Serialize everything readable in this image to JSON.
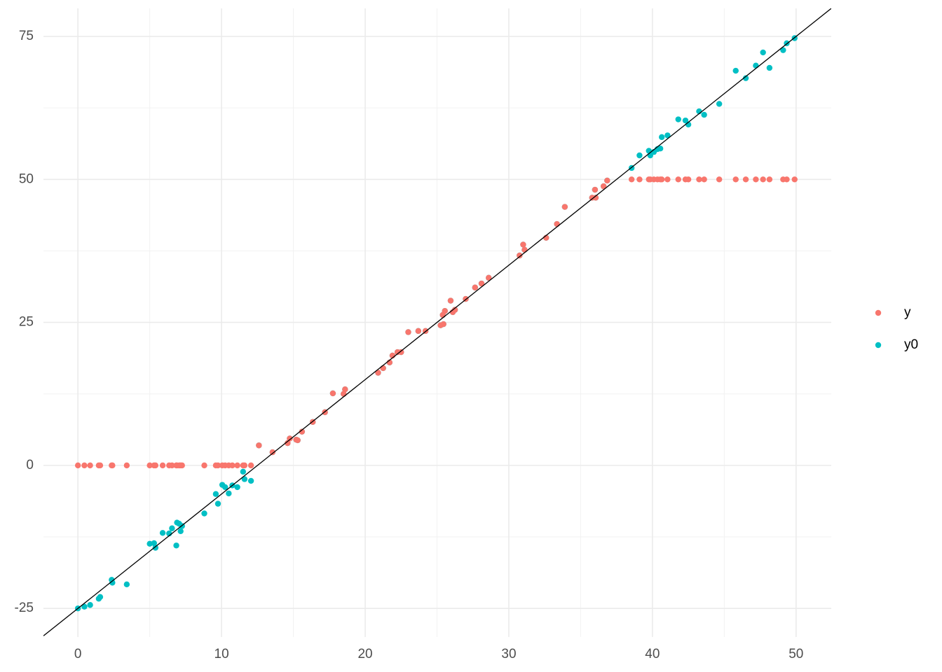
{
  "chart_data": {
    "type": "scatter",
    "xlim": [
      -2.4,
      52.45
    ],
    "ylim": [
      -30,
      79.9
    ],
    "xticks": [
      0,
      10,
      20,
      30,
      40,
      50
    ],
    "yticks": [
      -25,
      0,
      25,
      50,
      75
    ],
    "xminor": [
      5,
      15,
      25,
      35,
      45
    ],
    "yminor": [
      -12.5,
      12.5,
      37.5,
      62.5
    ],
    "grid": true,
    "legend": "right",
    "abline": {
      "intercept": -25,
      "slope": 2,
      "color": "#000000"
    },
    "x": [
      0.0,
      0.45,
      0.85,
      1.45,
      1.55,
      2.35,
      2.4,
      3.4,
      5.0,
      5.3,
      5.4,
      5.9,
      6.35,
      6.55,
      6.85,
      6.9,
      7.05,
      7.15,
      7.25,
      8.8,
      9.6,
      9.75,
      10.05,
      10.25,
      10.5,
      10.75,
      11.1,
      11.5,
      11.6,
      12.05,
      12.6,
      13.55,
      14.6,
      14.75,
      15.2,
      15.3,
      15.6,
      16.35,
      17.2,
      17.75,
      18.5,
      18.6,
      20.9,
      21.25,
      21.7,
      21.9,
      22.25,
      22.5,
      23.0,
      23.7,
      24.2,
      25.25,
      25.45,
      25.4,
      25.55,
      25.95,
      26.1,
      26.25,
      27.0,
      27.65,
      28.1,
      28.6,
      30.75,
      31.0,
      31.1,
      32.6,
      33.35,
      33.9,
      35.8,
      36.0,
      36.05,
      36.6,
      36.85,
      38.55,
      39.1,
      39.75,
      39.85,
      40.1,
      40.35,
      40.55,
      40.65,
      41.05,
      41.8,
      42.3,
      42.5,
      43.25,
      43.6,
      44.65,
      45.8,
      46.5,
      47.2,
      47.7,
      48.15,
      49.1,
      49.35,
      49.9
    ],
    "series": [
      {
        "name": "y",
        "color": "#F8766D",
        "values": [
          0,
          0,
          0,
          0,
          0,
          0,
          0,
          0,
          0,
          0,
          0,
          0,
          0,
          0,
          0,
          0,
          0,
          0,
          0,
          0,
          0,
          0,
          0,
          0,
          0,
          0,
          0,
          0,
          0,
          0,
          3.5,
          2.3,
          3.9,
          4.7,
          4.5,
          4.4,
          5.9,
          7.6,
          9.3,
          12.6,
          12.5,
          13.3,
          16.2,
          17,
          18,
          19.2,
          19.8,
          19.8,
          23.3,
          23.5,
          23.5,
          24.5,
          24.7,
          26.3,
          27,
          28.8,
          26.8,
          27.2,
          29.1,
          31.1,
          31.8,
          32.8,
          36.7,
          38.6,
          37.7,
          39.8,
          42.2,
          45.2,
          46.8,
          48.2,
          46.8,
          48.8,
          49.8,
          50,
          50,
          50,
          50,
          50,
          50,
          50,
          50,
          50,
          50,
          50,
          50,
          50,
          50,
          50,
          50,
          50,
          50,
          50,
          50,
          50,
          50,
          50
        ]
      },
      {
        "name": "y0",
        "color": "#00BFC4",
        "values": [
          -25,
          -24.7,
          -24.4,
          -23.3,
          -23,
          -20,
          -20.5,
          -20.8,
          -13.7,
          -13.6,
          -14.4,
          -11.8,
          -11.9,
          -11,
          -14,
          -10,
          -10.2,
          -11.5,
          -10.6,
          -8.4,
          -5,
          -6.7,
          -3.4,
          -3.8,
          -4.9,
          -3.5,
          -3.8,
          -1.1,
          -2.4,
          -2.7,
          3.5,
          2.3,
          3.9,
          4.7,
          4.5,
          4.4,
          5.9,
          7.6,
          9.3,
          12.6,
          12.5,
          13.3,
          16.2,
          17,
          18,
          19.2,
          19.8,
          19.8,
          23.3,
          23.5,
          23.5,
          24.5,
          24.7,
          26.3,
          27,
          28.8,
          26.8,
          27.2,
          29.1,
          31.1,
          31.8,
          32.8,
          36.7,
          38.6,
          37.7,
          39.8,
          42.2,
          45.2,
          46.8,
          48.2,
          46.8,
          48.8,
          49.8,
          52,
          54.2,
          55,
          54.2,
          54.8,
          55.3,
          55.4,
          57.4,
          57.7,
          60.5,
          60.3,
          59.6,
          61.9,
          61.3,
          63.2,
          69,
          67.7,
          69.9,
          72.2,
          69.5,
          72.6,
          73.8,
          74.7
        ]
      }
    ]
  }
}
